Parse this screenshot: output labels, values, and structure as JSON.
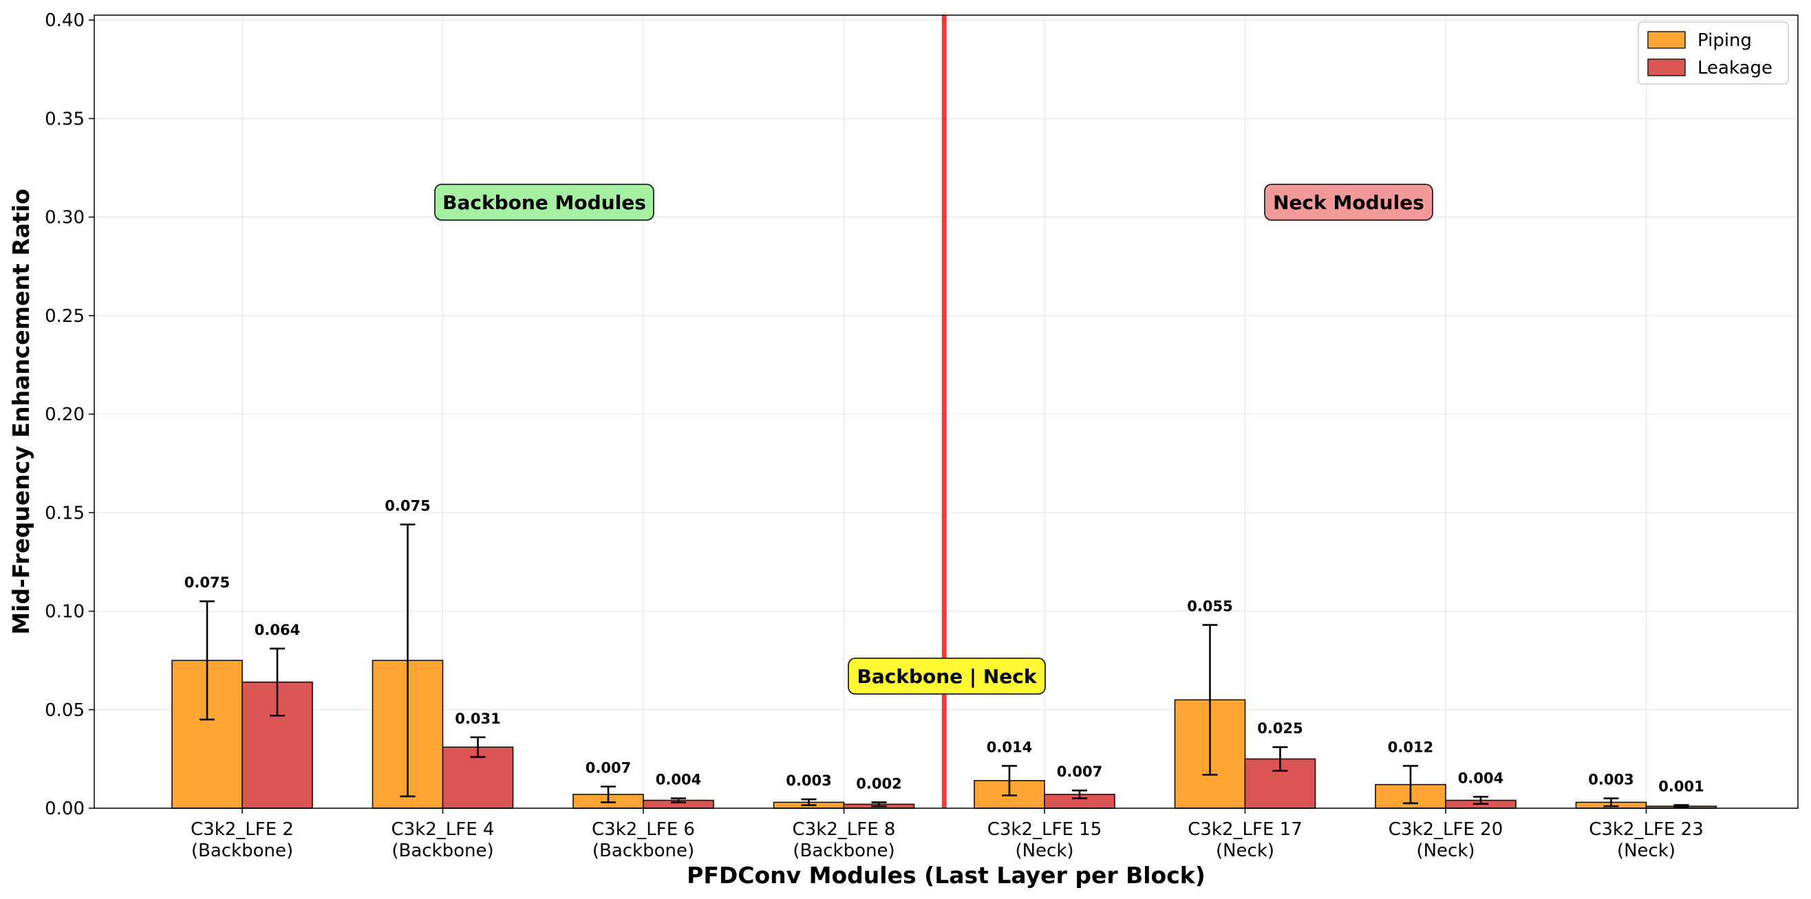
{
  "chart_data": {
    "type": "bar",
    "xlabel": "PFDConv Modules (Last Layer per Block)",
    "ylabel": "Mid-Frequency Enhancement Ratio",
    "ylim": [
      0,
      0.4
    ],
    "yticks": [
      "0.00",
      "0.05",
      "0.10",
      "0.15",
      "0.20",
      "0.25",
      "0.30",
      "0.35",
      "0.40"
    ],
    "grid": true,
    "legend_position": "top-right",
    "categories": [
      [
        "C3k2_LFE 2",
        "(Backbone)"
      ],
      [
        "C3k2_LFE 4",
        "(Backbone)"
      ],
      [
        "C3k2_LFE 6",
        "(Backbone)"
      ],
      [
        "C3k2_LFE 8",
        "(Backbone)"
      ],
      [
        "C3k2_LFE 15",
        "(Neck)"
      ],
      [
        "C3k2_LFE 17",
        "(Neck)"
      ],
      [
        "C3k2_LFE 20",
        "(Neck)"
      ],
      [
        "C3k2_LFE 23",
        "(Neck)"
      ]
    ],
    "series": [
      {
        "name": "Piping",
        "color": "#FFA533",
        "values": [
          0.075,
          0.075,
          0.007,
          0.003,
          0.014,
          0.055,
          0.012,
          0.003
        ],
        "errors": [
          0.03,
          0.069,
          0.004,
          0.0015,
          0.0075,
          0.038,
          0.0095,
          0.002
        ],
        "labels": [
          "0.075",
          "0.075",
          "0.007",
          "0.003",
          "0.014",
          "0.055",
          "0.012",
          "0.003"
        ]
      },
      {
        "name": "Leakage",
        "color": "#DC5555",
        "values": [
          0.064,
          0.031,
          0.004,
          0.002,
          0.007,
          0.025,
          0.004,
          0.001
        ],
        "errors": [
          0.017,
          0.005,
          0.001,
          0.001,
          0.002,
          0.006,
          0.0018,
          0.0006
        ],
        "labels": [
          "0.064",
          "0.031",
          "0.004",
          "0.002",
          "0.007",
          "0.025",
          "0.004",
          "0.001"
        ]
      }
    ],
    "annotations": [
      {
        "text": "Backbone Modules",
        "color": "#A3F0A3"
      },
      {
        "text": "Neck Modules",
        "color": "#F29999"
      },
      {
        "text": "Backbone | Neck",
        "color": "#FFF833"
      }
    ],
    "divider_color": "#EE3333"
  }
}
